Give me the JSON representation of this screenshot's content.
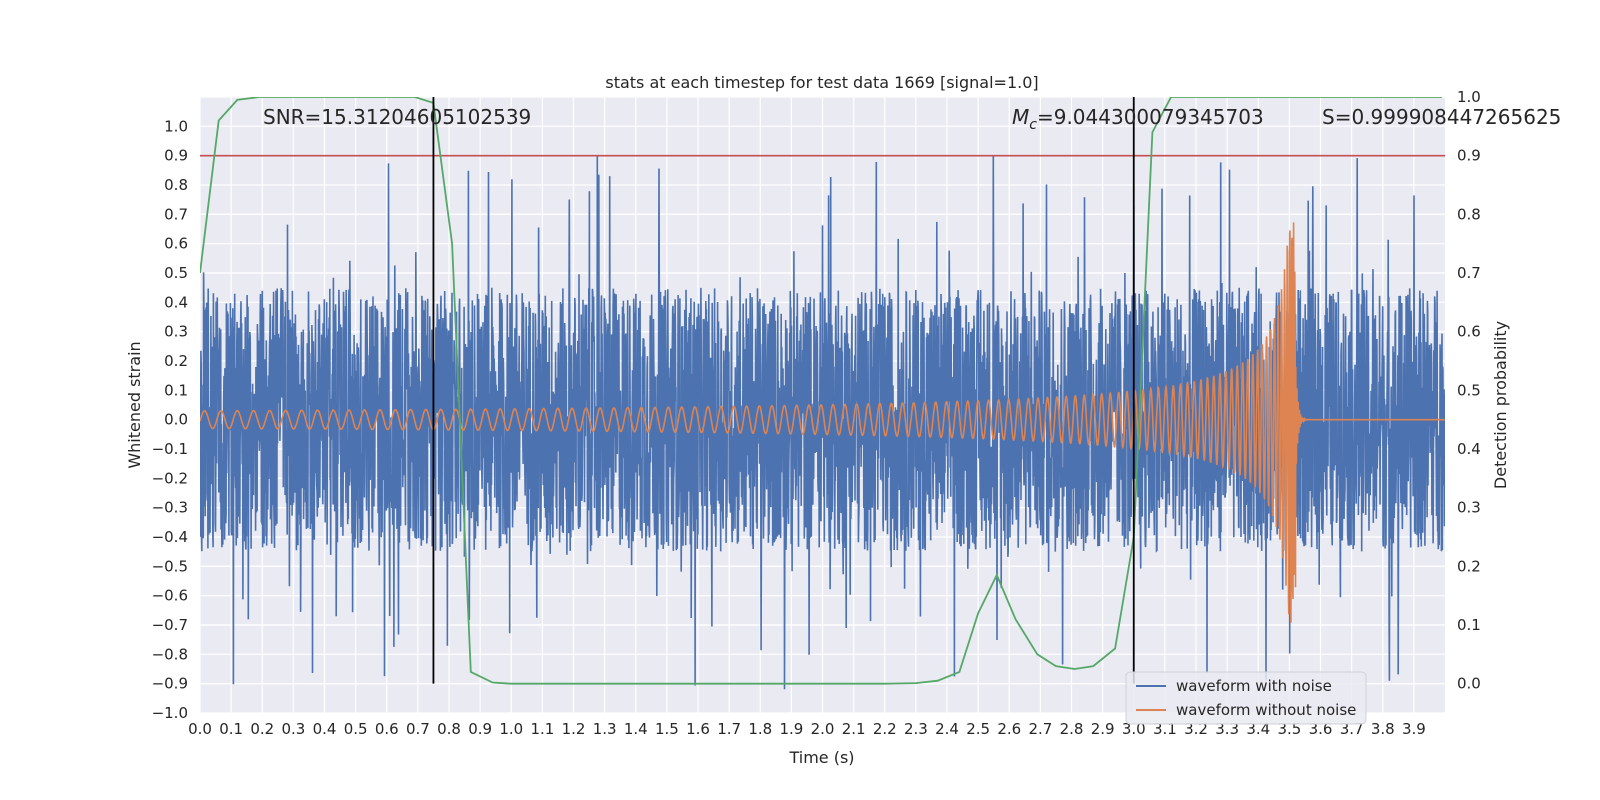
{
  "chart_data": {
    "type": "line",
    "title": "stats at each timestep for test data 1669 [signal=1.0]",
    "xlabel": "Time (s)",
    "ylabel": "Whitened strain",
    "y2label": "Detection probability",
    "xlim": [
      0.0,
      4.0
    ],
    "ylim": [
      -1.0,
      1.1
    ],
    "y2lim": [
      -0.05,
      1.0
    ],
    "xticks": [
      "0.0",
      "0.1",
      "0.2",
      "0.3",
      "0.4",
      "0.5",
      "0.6",
      "0.7",
      "0.8",
      "0.9",
      "1.0",
      "1.1",
      "1.2",
      "1.3",
      "1.4",
      "1.5",
      "1.6",
      "1.7",
      "1.8",
      "1.9",
      "2.0",
      "2.1",
      "2.2",
      "2.3",
      "2.4",
      "2.5",
      "2.6",
      "2.7",
      "2.8",
      "2.9",
      "3.0",
      "3.1",
      "3.2",
      "3.3",
      "3.4",
      "3.5",
      "3.6",
      "3.7",
      "3.8",
      "3.9"
    ],
    "yticks": [
      "1.0",
      "0.9",
      "0.8",
      "0.7",
      "0.6",
      "0.5",
      "0.4",
      "0.3",
      "0.2",
      "0.1",
      "0.0",
      "−0.1",
      "−0.2",
      "−0.3",
      "−0.4",
      "−0.5",
      "−0.6",
      "−0.7",
      "−0.8",
      "−0.9",
      "−1.0"
    ],
    "y2ticks": [
      "1.0",
      "0.9",
      "0.8",
      "0.7",
      "0.6",
      "0.5",
      "0.4",
      "0.3",
      "0.2",
      "0.1",
      "0.0"
    ],
    "grid": true,
    "legend_position": "bottom-right",
    "colors": {
      "noise": "#4c72b0",
      "clean": "#dd8452",
      "probability": "#55a868",
      "threshold": "#c44e52",
      "marker": "#000000",
      "background": "#eaeaf2",
      "grid": "#ffffff"
    },
    "series": [
      {
        "name": "waveform with noise",
        "axis": "left",
        "description": "Whitened strain with noise, roughly uniform random amplitude about ±0.5, spikes up to 0.95 / down to −0.9"
      },
      {
        "name": "waveform without noise",
        "axis": "left",
        "description": "Chirp signal, amplitude ~0.03 at t=0 growing to ~0.7 peak at t≈3.52 s, then near zero",
        "chirp_merger_time": 3.52,
        "chirp_peak_amplitude": 0.7
      },
      {
        "name": "detection probability",
        "axis": "right",
        "x": [
          0.0,
          0.06,
          0.12,
          0.19,
          0.25,
          0.31,
          0.37,
          0.44,
          0.5,
          0.56,
          0.62,
          0.69,
          0.75,
          0.81,
          0.87,
          0.94,
          1.0,
          1.5,
          2.0,
          2.2,
          2.3,
          2.37,
          2.44,
          2.5,
          2.56,
          2.62,
          2.69,
          2.75,
          2.81,
          2.87,
          2.94,
          3.0,
          3.06,
          3.12,
          3.19,
          3.5,
          3.99
        ],
        "y": [
          0.7,
          0.96,
          0.995,
          1.0,
          1.0,
          1.0,
          1.0,
          1.0,
          1.0,
          1.0,
          1.0,
          1.0,
          0.99,
          0.75,
          0.02,
          0.002,
          0.0,
          0.0,
          0.0,
          0.0,
          0.001,
          0.005,
          0.02,
          0.12,
          0.185,
          0.11,
          0.05,
          0.03,
          0.025,
          0.03,
          0.06,
          0.25,
          0.94,
          1.0,
          1.0,
          1.0,
          1.0
        ]
      }
    ],
    "threshold_right_axis": 0.9,
    "markers_x": [
      0.75,
      3.0
    ],
    "annotations": {
      "snr": "SNR=15.31204605102539",
      "mc": "=9.044300079345703",
      "mc_symbol": "M",
      "mc_sub": "c",
      "s": "S=0.999908447265625"
    },
    "legend": [
      {
        "label": "waveform with noise"
      },
      {
        "label": "waveform without noise"
      }
    ]
  }
}
